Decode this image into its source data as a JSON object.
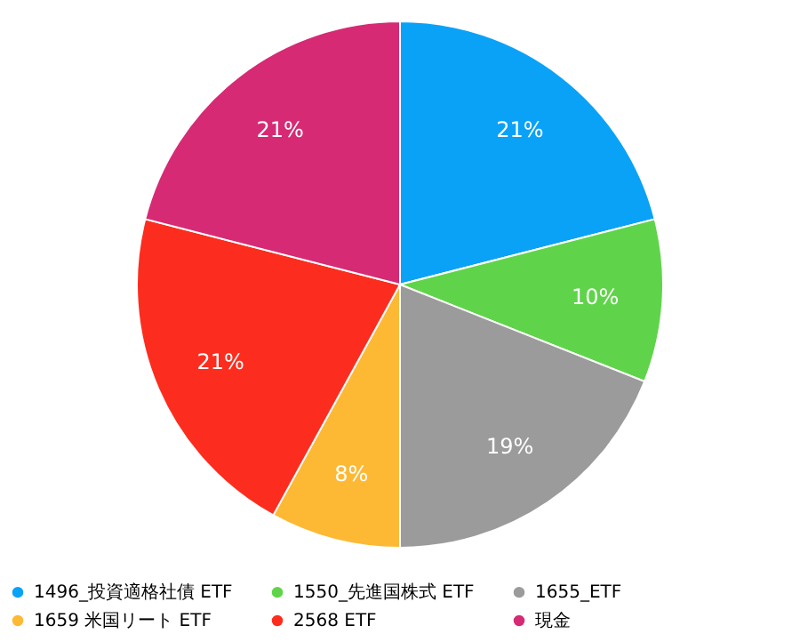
{
  "chart_data": {
    "type": "pie",
    "categories": [
      "1496_投資適格社債 ETF",
      "1550_先進国株式 ETF",
      "1655_ETF",
      "1659 米国リート ETF",
      "2568 ETF",
      "現金"
    ],
    "values": [
      21,
      10,
      19,
      8,
      21,
      21
    ],
    "colors": [
      "#0aa2f7",
      "#5fd44a",
      "#9b9b9b",
      "#fdb934",
      "#fc2d1e",
      "#d62a74"
    ],
    "value_labels": [
      "21%",
      "10%",
      "19%",
      "8%",
      "21%",
      "21%"
    ],
    "legend": "bottom"
  }
}
